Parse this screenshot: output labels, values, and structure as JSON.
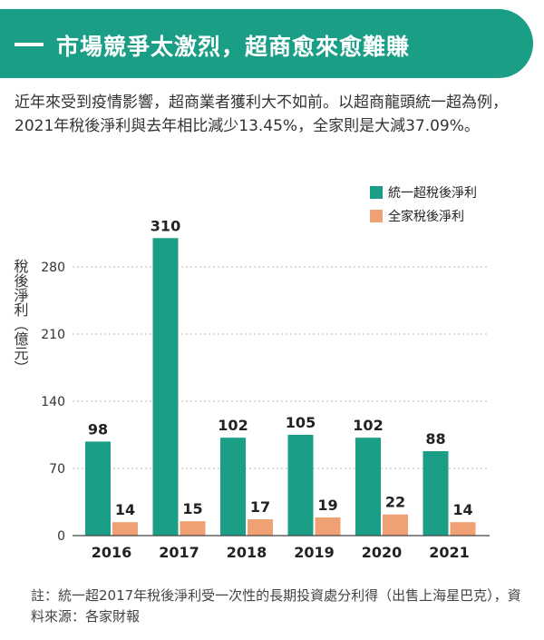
{
  "header": {
    "title": "市場競爭太激烈，超商愈來愈難賺"
  },
  "intro": {
    "text": "近年來受到疫情影響，超商業者獲利大不如前。以超商龍頭統一超為例，2021年稅後淨利與去年相比減少13.45%，全家則是大減37.09%。"
  },
  "footnote": {
    "text": "註：統一超2017年稅後淨利受一次性的長期投資處分利得（出售上海星巴克），資料來源：各家財報"
  },
  "colors": {
    "accent": "#1a9e86",
    "series_1": "#1a9e86",
    "series_2": "#f0a174",
    "grid": "#bbbbbb"
  },
  "chart_data": {
    "type": "bar",
    "categories": [
      "2016",
      "2017",
      "2018",
      "2019",
      "2020",
      "2021"
    ],
    "series": [
      {
        "name": "統一超稅後淨利",
        "values": [
          98,
          310,
          102,
          105,
          102,
          88
        ]
      },
      {
        "name": "全家稅後淨利",
        "values": [
          14,
          15,
          17,
          19,
          22,
          14
        ]
      }
    ],
    "ylabel": "稅後淨利（億元）",
    "yticks": [
      0,
      70,
      140,
      210,
      280
    ],
    "ylim": [
      0,
      320
    ],
    "grid": "horizontal dotted",
    "legend": "top-right"
  }
}
